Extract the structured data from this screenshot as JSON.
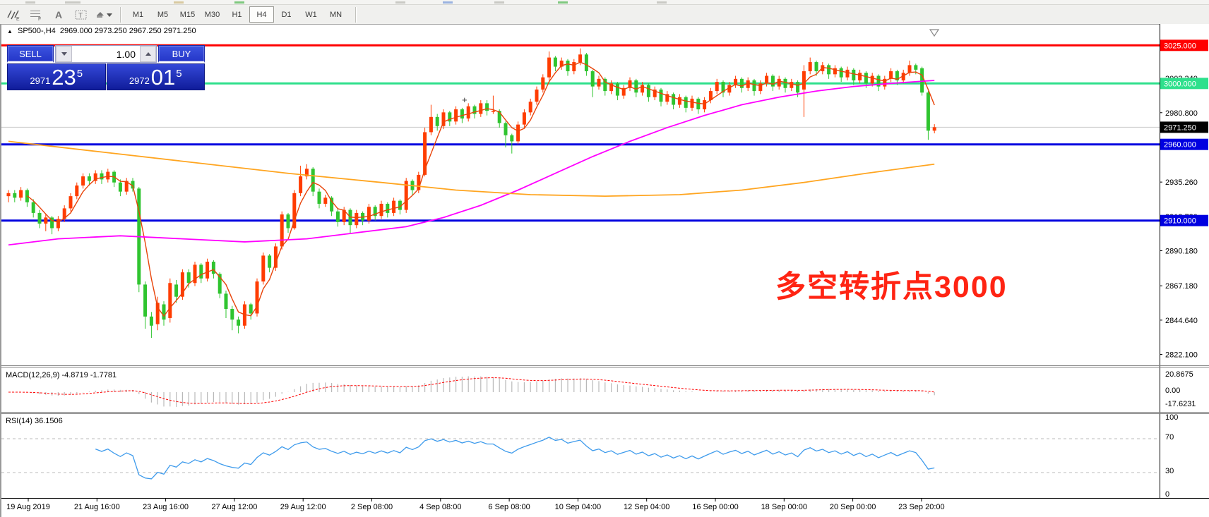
{
  "toolbar": {
    "icons": [
      "indicators-icon",
      "grid-f-icon",
      "text-label-icon",
      "text-box-icon",
      "cycles-icon"
    ],
    "timeframes": [
      "M1",
      "M5",
      "M15",
      "M30",
      "H1",
      "H4",
      "D1",
      "W1",
      "MN"
    ],
    "active_timeframe": "H4"
  },
  "header": {
    "symbol_text": "SP500-,H4",
    "ohlc_text": "2969.000 2973.250 2967.250 2971.250"
  },
  "trade": {
    "sell_label": "SELL",
    "buy_label": "BUY",
    "volume": "1.00",
    "sell_price": {
      "small": "2971",
      "big": "23",
      "sup": "5"
    },
    "buy_price": {
      "small": "2972",
      "big": "01",
      "sup": "5"
    }
  },
  "annotation": {
    "text": "多空转折点3000",
    "color": "#ff2413"
  },
  "macd_panel": {
    "label": "MACD(12,26,9) -4.8719 -1.7781",
    "axis": [
      [
        "20.8675",
        500
      ],
      [
        "0.00",
        523
      ],
      [
        "-17.6231",
        542
      ]
    ]
  },
  "rsi_panel": {
    "label": "RSI(14) 36.1506",
    "axis": [
      [
        "100",
        561
      ],
      [
        "70",
        589
      ],
      [
        "30",
        637
      ],
      [
        "0",
        670
      ]
    ],
    "dashed_levels": [
      70,
      30
    ]
  },
  "price_axis": {
    "ticks": [
      [
        "3003.340",
        3003.34
      ],
      [
        "2980.800",
        2980.8
      ],
      [
        "2935.260",
        2935.26
      ],
      [
        "2912.720",
        2912.72
      ],
      [
        "2890.180",
        2890.18
      ],
      [
        "2867.180",
        2867.18
      ],
      [
        "2844.640",
        2844.64
      ],
      [
        "2822.100",
        2822.1
      ]
    ],
    "badges": [
      [
        "3025.000",
        3025,
        "#ff0000"
      ],
      [
        "3000.000",
        3000,
        "#2ee08c"
      ],
      [
        "2971.250",
        2971.25,
        "#000000"
      ],
      [
        "2960.000",
        2960,
        "#0000e0"
      ],
      [
        "2910.000",
        2910,
        "#0000e0"
      ]
    ]
  },
  "time_axis": {
    "labels": [
      "19 Aug 2019",
      "21 Aug 16:00",
      "23 Aug 16:00",
      "27 Aug 12:00",
      "29 Aug 12:00",
      "2 Sep 08:00",
      "4 Sep 08:00",
      "6 Sep 08:00",
      "10 Sep 04:00",
      "12 Sep 04:00",
      "16 Sep 00:00",
      "18 Sep 00:00",
      "20 Sep 00:00",
      "23 Sep 20:00"
    ]
  },
  "colors": {
    "up": "#ff3c00",
    "down": "#2fc42f",
    "fast_ma": "#e8440a",
    "magenta_ma": "#ff00ff",
    "orange_ma": "#ffa520",
    "rsi_line": "#3e9bec",
    "macd_hist": "#b9b9b9",
    "macd_signal": "#ff0000",
    "hline_red": "#ff0000",
    "hline_green": "#2ee08c",
    "hline_blue": "#0000e0",
    "hline_gray": "#c8c8c8"
  },
  "chart_data": {
    "type": "candlestick",
    "symbol": "SP500-",
    "timeframe": "H4",
    "hlines": [
      [
        3025,
        "#ff0000",
        3
      ],
      [
        3000,
        "#2ee08c",
        3
      ],
      [
        2971.25,
        "#c8c8c8",
        1
      ],
      [
        2960,
        "#0000e0",
        3
      ],
      [
        2910,
        "#0000e0",
        3
      ]
    ],
    "current_bar": {
      "open": 2969.0,
      "high": 2973.25,
      "low": 2967.25,
      "close": 2971.25
    },
    "ohlc": [
      [
        2926,
        2930,
        2922,
        2928
      ],
      [
        2928,
        2930,
        2922,
        2925
      ],
      [
        2925,
        2932,
        2923,
        2930
      ],
      [
        2930,
        2931,
        2919,
        2922
      ],
      [
        2922,
        2924,
        2912,
        2915
      ],
      [
        2915,
        2917,
        2905,
        2908
      ],
      [
        2908,
        2914,
        2903,
        2912
      ],
      [
        2912,
        2913,
        2901,
        2905
      ],
      [
        2905,
        2913,
        2903,
        2911
      ],
      [
        2911,
        2920,
        2909,
        2918
      ],
      [
        2918,
        2928,
        2916,
        2926
      ],
      [
        2926,
        2935,
        2924,
        2933
      ],
      [
        2933,
        2941,
        2931,
        2939
      ],
      [
        2939,
        2941,
        2933,
        2936
      ],
      [
        2936,
        2943,
        2934,
        2941
      ],
      [
        2941,
        2943,
        2934,
        2937
      ],
      [
        2937,
        2944,
        2935,
        2942
      ],
      [
        2942,
        2943,
        2932,
        2935
      ],
      [
        2935,
        2937,
        2926,
        2929
      ],
      [
        2929,
        2938,
        2927,
        2936
      ],
      [
        2936,
        2938,
        2929,
        2931
      ],
      [
        2931,
        2932,
        2863,
        2868
      ],
      [
        2868,
        2870,
        2839,
        2847
      ],
      [
        2847,
        2850,
        2833,
        2841
      ],
      [
        2842,
        2860,
        2838,
        2856
      ],
      [
        2855,
        2857,
        2841,
        2845
      ],
      [
        2846,
        2872,
        2843,
        2869
      ],
      [
        2868,
        2871,
        2856,
        2860
      ],
      [
        2860,
        2878,
        2858,
        2876
      ],
      [
        2876,
        2878,
        2866,
        2869
      ],
      [
        2869,
        2883,
        2867,
        2881
      ],
      [
        2881,
        2882,
        2869,
        2872
      ],
      [
        2872,
        2885,
        2870,
        2883
      ],
      [
        2883,
        2884,
        2872,
        2875
      ],
      [
        2875,
        2876,
        2859,
        2862
      ],
      [
        2862,
        2864,
        2846,
        2852
      ],
      [
        2852,
        2854,
        2838,
        2845
      ],
      [
        2845,
        2847,
        2836,
        2841
      ],
      [
        2841,
        2857,
        2839,
        2855
      ],
      [
        2855,
        2856,
        2845,
        2849
      ],
      [
        2849,
        2872,
        2847,
        2870
      ],
      [
        2870,
        2889,
        2868,
        2887
      ],
      [
        2887,
        2888,
        2876,
        2879
      ],
      [
        2879,
        2895,
        2877,
        2893
      ],
      [
        2893,
        2916,
        2891,
        2914
      ],
      [
        2914,
        2915,
        2902,
        2905
      ],
      [
        2905,
        2930,
        2904,
        2928
      ],
      [
        2928,
        2946,
        2926,
        2939
      ],
      [
        2939,
        2947,
        2937,
        2944
      ],
      [
        2944,
        2945,
        2926,
        2929
      ],
      [
        2929,
        2931,
        2918,
        2921
      ],
      [
        2921,
        2927,
        2919,
        2925
      ],
      [
        2925,
        2926,
        2913,
        2916
      ],
      [
        2916,
        2918,
        2906,
        2909
      ],
      [
        2909,
        2919,
        2907,
        2917
      ],
      [
        2917,
        2918,
        2902,
        2907
      ],
      [
        2907,
        2917,
        2905,
        2915
      ],
      [
        2915,
        2916,
        2907,
        2910
      ],
      [
        2910,
        2921,
        2908,
        2919
      ],
      [
        2919,
        2920,
        2910,
        2913
      ],
      [
        2913,
        2923,
        2911,
        2921
      ],
      [
        2921,
        2922,
        2912,
        2915
      ],
      [
        2915,
        2925,
        2913,
        2923
      ],
      [
        2923,
        2924,
        2914,
        2917
      ],
      [
        2917,
        2938,
        2915,
        2936
      ],
      [
        2936,
        2937,
        2927,
        2930
      ],
      [
        2930,
        2942,
        2928,
        2940
      ],
      [
        2940,
        2971,
        2939,
        2968
      ],
      [
        2968,
        2986,
        2966,
        2978
      ],
      [
        2978,
        2980,
        2969,
        2972
      ],
      [
        2972,
        2983,
        2970,
        2981
      ],
      [
        2981,
        2982,
        2972,
        2975
      ],
      [
        2975,
        2985,
        2973,
        2983
      ],
      [
        2983,
        2984,
        2974,
        2977
      ],
      [
        2977,
        2987,
        2975,
        2985
      ],
      [
        2985,
        2986,
        2977,
        2980
      ],
      [
        2980,
        2989,
        2978,
        2987
      ],
      [
        2987,
        2989,
        2979,
        2982
      ],
      [
        2982,
        2992,
        2980,
        2982
      ],
      [
        2982,
        2983,
        2971,
        2974
      ],
      [
        2974,
        2975,
        2958,
        2966
      ],
      [
        2966,
        2967,
        2954,
        2962
      ],
      [
        2962,
        2975,
        2960,
        2973
      ],
      [
        2973,
        2983,
        2971,
        2981
      ],
      [
        2981,
        2990,
        2979,
        2988
      ],
      [
        2988,
        2998,
        2986,
        2996
      ],
      [
        2996,
        3006,
        2994,
        3004
      ],
      [
        3004,
        3021,
        3002,
        3017
      ],
      [
        3017,
        3018,
        3008,
        3011
      ],
      [
        3011,
        3017,
        3009,
        3015
      ],
      [
        3015,
        3016,
        3005,
        3008
      ],
      [
        3008,
        3016,
        3006,
        3014
      ],
      [
        3014,
        3023,
        3012,
        3019
      ],
      [
        3019,
        3020,
        3005,
        3008
      ],
      [
        3008,
        3009,
        2991,
        2998
      ],
      [
        2998,
        3005,
        2996,
        3003
      ],
      [
        3003,
        3004,
        2992,
        2995
      ],
      [
        2995,
        3002,
        2993,
        3000
      ],
      [
        3000,
        3001,
        2989,
        2992
      ],
      [
        2992,
        2999,
        2990,
        2997
      ],
      [
        2997,
        3004,
        2995,
        3002
      ],
      [
        3002,
        3003,
        2991,
        2994
      ],
      [
        2994,
        3001,
        2992,
        2999
      ],
      [
        2999,
        3000,
        2988,
        2991
      ],
      [
        2991,
        2998,
        2989,
        2996
      ],
      [
        2996,
        2997,
        2985,
        2988
      ],
      [
        2988,
        2995,
        2986,
        2993
      ],
      [
        2993,
        2994,
        2983,
        2986
      ],
      [
        2986,
        2993,
        2984,
        2991
      ],
      [
        2991,
        2992,
        2981,
        2984
      ],
      [
        2984,
        2992,
        2982,
        2990
      ],
      [
        2990,
        2991,
        2980,
        2983
      ],
      [
        2983,
        2991,
        2981,
        2989
      ],
      [
        2989,
        2997,
        2987,
        2995
      ],
      [
        2995,
        3003,
        2993,
        3001
      ],
      [
        3001,
        3002,
        2991,
        2994
      ],
      [
        2994,
        3001,
        2992,
        2999
      ],
      [
        2999,
        3005,
        2997,
        3003
      ],
      [
        3003,
        3004,
        2994,
        2997
      ],
      [
        2997,
        3004,
        2995,
        3002
      ],
      [
        3002,
        3003,
        2992,
        2995
      ],
      [
        2995,
        3002,
        2993,
        3000
      ],
      [
        3000,
        3007,
        2998,
        3005
      ],
      [
        3005,
        3006,
        2995,
        2998
      ],
      [
        2998,
        3005,
        2996,
        3003
      ],
      [
        3003,
        3004,
        2994,
        2997
      ],
      [
        2997,
        3003,
        2995,
        3001
      ],
      [
        3001,
        3002,
        2991,
        2994
      ],
      [
        2996,
        3012,
        2978,
        3008
      ],
      [
        3008,
        3017,
        3006,
        3014
      ],
      [
        3014,
        3015,
        3005,
        3008
      ],
      [
        3008,
        3014,
        3006,
        3012
      ],
      [
        3012,
        3013,
        3003,
        3006
      ],
      [
        3006,
        3012,
        3004,
        3010
      ],
      [
        3010,
        3011,
        3001,
        3004
      ],
      [
        3004,
        3011,
        3002,
        3009
      ],
      [
        3009,
        3010,
        2999,
        3002
      ],
      [
        3002,
        3009,
        3000,
        3007
      ],
      [
        3007,
        3008,
        2997,
        3000
      ],
      [
        3000,
        3007,
        2998,
        3005
      ],
      [
        3005,
        3006,
        2995,
        2998
      ],
      [
        2998,
        3005,
        2996,
        3003
      ],
      [
        3003,
        3010,
        3001,
        3008
      ],
      [
        3008,
        3009,
        2999,
        3002
      ],
      [
        3002,
        3009,
        3000,
        3007
      ],
      [
        3007,
        3015,
        3005,
        3012
      ],
      [
        3012,
        3013,
        3006,
        3009
      ],
      [
        3010,
        3011,
        2992,
        2994
      ],
      [
        2994,
        2995,
        2963,
        2969
      ],
      [
        2969,
        2973.25,
        2967.25,
        2971.25
      ]
    ],
    "ma_orange": [
      [
        0,
        2962
      ],
      [
        15,
        2955
      ],
      [
        30,
        2948
      ],
      [
        45,
        2941
      ],
      [
        60,
        2935
      ],
      [
        72,
        2930
      ],
      [
        84,
        2927
      ],
      [
        96,
        2926
      ],
      [
        108,
        2927
      ],
      [
        118,
        2930
      ],
      [
        128,
        2935
      ],
      [
        138,
        2941
      ],
      [
        149,
        2947
      ]
    ],
    "ma_magenta": [
      [
        0,
        2894
      ],
      [
        8,
        2898
      ],
      [
        18,
        2900
      ],
      [
        28,
        2898
      ],
      [
        38,
        2896
      ],
      [
        48,
        2898
      ],
      [
        56,
        2902
      ],
      [
        64,
        2906
      ],
      [
        70,
        2912
      ],
      [
        76,
        2920
      ],
      [
        82,
        2930
      ],
      [
        88,
        2941
      ],
      [
        94,
        2952
      ],
      [
        100,
        2962
      ],
      [
        106,
        2971
      ],
      [
        112,
        2979
      ],
      [
        118,
        2986
      ],
      [
        124,
        2991
      ],
      [
        130,
        2995
      ],
      [
        136,
        2998
      ],
      [
        142,
        3000
      ],
      [
        149,
        3002
      ]
    ],
    "indicators": {
      "macd": {
        "params": "12,26,9",
        "current": "-4.8719 -1.7781",
        "axis_max": 20.8675,
        "axis_min": -17.6231
      },
      "rsi": {
        "params": "14",
        "current": "36.1506",
        "levels": [
          70,
          30
        ]
      }
    }
  }
}
